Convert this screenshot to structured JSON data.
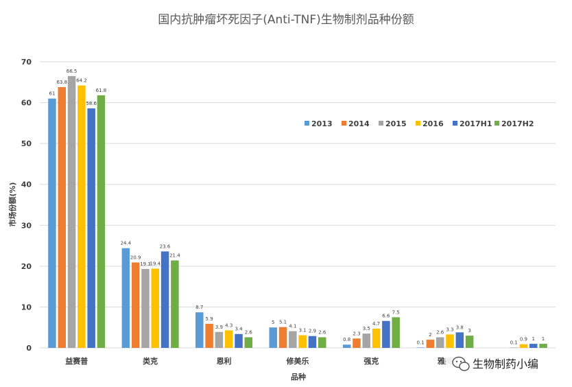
{
  "chart_data": {
    "type": "bar",
    "title": "国内抗肿瘤坏死因子(Anti-TNF)生物制剂品种份额",
    "xlabel": "品种",
    "ylabel": "市场份额(%)",
    "ylim": [
      0,
      70
    ],
    "yticks": [
      0,
      10,
      20,
      30,
      40,
      50,
      60,
      70
    ],
    "grid": true,
    "legend_position": "top-right",
    "categories": [
      "益赛普",
      "类克",
      "恩利",
      "修美乐",
      "强克",
      "雅美",
      ""
    ],
    "series": [
      {
        "name": "2013",
        "color": "#5b9bd5",
        "values": [
          61,
          24.4,
          8.7,
          5,
          0.8,
          0.1,
          null
        ]
      },
      {
        "name": "2014",
        "color": "#ed7d31",
        "values": [
          63.8,
          20.9,
          5.9,
          5.1,
          2.3,
          2,
          null
        ]
      },
      {
        "name": "2015",
        "color": "#a5a5a5",
        "values": [
          66.5,
          19.3,
          3.9,
          4.1,
          3.5,
          2.6,
          0.1
        ]
      },
      {
        "name": "2016",
        "color": "#ffc000",
        "values": [
          64.2,
          19.4,
          4.3,
          3.1,
          4.7,
          3.3,
          0.9
        ]
      },
      {
        "name": "2017H1",
        "color": "#4472c4",
        "values": [
          58.6,
          23.6,
          3.4,
          2.9,
          6.6,
          3.8,
          1
        ]
      },
      {
        "name": "2017H2",
        "color": "#70ad47",
        "values": [
          61.8,
          21.4,
          2.6,
          2.6,
          7.5,
          3,
          1
        ]
      }
    ]
  },
  "watermark": {
    "text": "生物制药小编",
    "icon": "wechat-icon"
  }
}
